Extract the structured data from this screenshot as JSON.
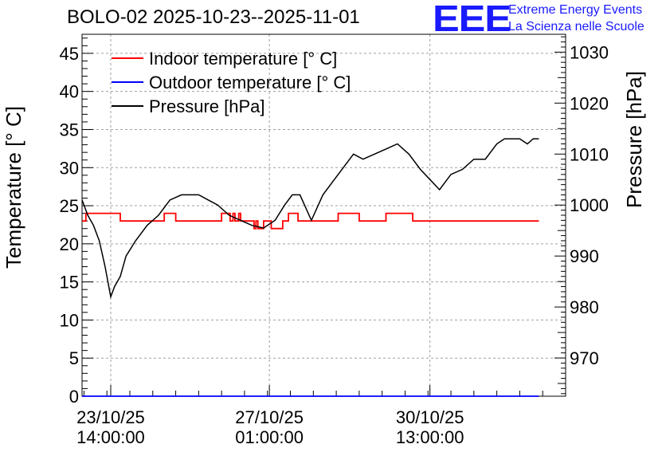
{
  "header": {
    "title": "BOLO-02 2025-10-23--2025-11-01",
    "logo_letters": "EEE",
    "logo_line1": "Extreme Energy Events",
    "logo_line2": "La Scienza nelle Scuole",
    "logo_color": "#1a1aff"
  },
  "chart_data": {
    "type": "line",
    "title": "BOLO-02 2025-10-23--2025-11-01",
    "ylabel": "Temperature [° C]",
    "y2label": "Pressure [hPa]",
    "ylim": [
      0,
      47.5
    ],
    "y2lim": [
      962.5,
      1033.5
    ],
    "y_ticks": [
      0,
      5,
      10,
      15,
      20,
      25,
      30,
      35,
      40,
      45
    ],
    "y2_ticks": [
      970,
      980,
      990,
      1000,
      1010,
      1020,
      1030
    ],
    "x_range": [
      "2025-10-22 23:00",
      "2025-11-02 12:00"
    ],
    "x_ticks": [
      {
        "date": "23/10/25",
        "time": "14:00:00",
        "t": "2025-10-23 14:00"
      },
      {
        "date": "27/10/25",
        "time": "01:00:00",
        "t": "2025-10-27 01:00"
      },
      {
        "date": "30/10/25",
        "time": "13:00:00",
        "t": "2025-10-30 13:00"
      }
    ],
    "grid": true,
    "legend_position": "top-left",
    "series": [
      {
        "name": "Indoor temperature [° C]",
        "axis": "left",
        "color": "#ff0000",
        "points": [
          [
            "2025-10-22 23:00",
            23
          ],
          [
            "2025-10-23 01:00",
            24
          ],
          [
            "2025-10-23 18:00",
            24
          ],
          [
            "2025-10-23 19:00",
            23
          ],
          [
            "2025-10-24 17:00",
            23
          ],
          [
            "2025-10-24 18:00",
            24
          ],
          [
            "2025-10-24 23:00",
            24
          ],
          [
            "2025-10-25 00:00",
            23
          ],
          [
            "2025-10-25 23:00",
            23
          ],
          [
            "2025-10-26 00:00",
            24
          ],
          [
            "2025-10-26 04:00",
            24
          ],
          [
            "2025-10-26 04:30",
            23
          ],
          [
            "2025-10-26 06:00",
            24
          ],
          [
            "2025-10-26 07:00",
            23
          ],
          [
            "2025-10-26 09:00",
            24
          ],
          [
            "2025-10-26 10:00",
            23
          ],
          [
            "2025-10-26 16:00",
            23
          ],
          [
            "2025-10-26 17:00",
            22
          ],
          [
            "2025-10-26 18:00",
            23
          ],
          [
            "2025-10-26 19:00",
            22
          ],
          [
            "2025-10-26 21:00",
            22
          ],
          [
            "2025-10-26 22:00",
            23
          ],
          [
            "2025-10-27 01:00",
            23
          ],
          [
            "2025-10-27 02:00",
            22
          ],
          [
            "2025-10-27 07:00",
            22
          ],
          [
            "2025-10-27 08:00",
            23
          ],
          [
            "2025-10-27 10:00",
            23
          ],
          [
            "2025-10-27 11:00",
            24
          ],
          [
            "2025-10-27 15:00",
            24
          ],
          [
            "2025-10-27 16:00",
            23
          ],
          [
            "2025-10-28 12:00",
            23
          ],
          [
            "2025-10-28 13:00",
            24
          ],
          [
            "2025-10-28 23:00",
            24
          ],
          [
            "2025-10-29 00:00",
            23
          ],
          [
            "2025-10-29 13:00",
            23
          ],
          [
            "2025-10-29 14:00",
            24
          ],
          [
            "2025-10-30 03:00",
            24
          ],
          [
            "2025-10-30 04:00",
            23
          ],
          [
            "2025-11-01 22:00",
            23
          ]
        ]
      },
      {
        "name": "Outdoor temperature [° C]",
        "axis": "left",
        "color": "#0000ff",
        "points": [
          [
            "2025-10-22 23:00",
            0
          ],
          [
            "2025-11-01 22:00",
            0
          ]
        ]
      },
      {
        "name": "Pressure [hPa]",
        "axis": "right",
        "color": "#000000",
        "points": [
          [
            "2025-10-22 23:00",
            1001
          ],
          [
            "2025-10-23 02:00",
            998
          ],
          [
            "2025-10-23 05:00",
            996
          ],
          [
            "2025-10-23 08:00",
            993
          ],
          [
            "2025-10-23 11:00",
            988
          ],
          [
            "2025-10-23 14:00",
            982
          ],
          [
            "2025-10-23 16:00",
            984
          ],
          [
            "2025-10-23 19:00",
            986
          ],
          [
            "2025-10-23 22:00",
            990
          ],
          [
            "2025-10-24 03:00",
            993
          ],
          [
            "2025-10-24 09:00",
            996
          ],
          [
            "2025-10-24 15:00",
            998
          ],
          [
            "2025-10-24 21:00",
            1001
          ],
          [
            "2025-10-25 03:00",
            1002
          ],
          [
            "2025-10-25 12:00",
            1002
          ],
          [
            "2025-10-25 17:00",
            1001
          ],
          [
            "2025-10-25 22:00",
            1000
          ],
          [
            "2025-10-26 04:00",
            998
          ],
          [
            "2025-10-26 10:00",
            997
          ],
          [
            "2025-10-26 16:00",
            996
          ],
          [
            "2025-10-26 22:00",
            995.5
          ],
          [
            "2025-10-27 04:00",
            997
          ],
          [
            "2025-10-27 09:00",
            1000
          ],
          [
            "2025-10-27 13:00",
            1002
          ],
          [
            "2025-10-27 17:00",
            1002
          ],
          [
            "2025-10-27 23:00",
            997
          ],
          [
            "2025-10-28 05:00",
            1002
          ],
          [
            "2025-10-28 11:00",
            1005
          ],
          [
            "2025-10-28 17:00",
            1008
          ],
          [
            "2025-10-28 21:00",
            1010
          ],
          [
            "2025-10-29 02:00",
            1009
          ],
          [
            "2025-10-29 08:00",
            1010
          ],
          [
            "2025-10-29 14:00",
            1011
          ],
          [
            "2025-10-29 20:00",
            1012
          ],
          [
            "2025-10-30 02:00",
            1010
          ],
          [
            "2025-10-30 08:00",
            1007
          ],
          [
            "2025-10-30 13:00",
            1005
          ],
          [
            "2025-10-30 18:00",
            1003
          ],
          [
            "2025-10-31 00:00",
            1006
          ],
          [
            "2025-10-31 06:00",
            1007
          ],
          [
            "2025-10-31 12:00",
            1009
          ],
          [
            "2025-10-31 18:00",
            1009
          ],
          [
            "2025-11-01 00:00",
            1012
          ],
          [
            "2025-11-01 04:00",
            1013
          ],
          [
            "2025-11-01 12:00",
            1013
          ],
          [
            "2025-11-01 16:00",
            1012
          ],
          [
            "2025-11-01 19:00",
            1013
          ],
          [
            "2025-11-01 22:00",
            1013
          ]
        ]
      }
    ]
  }
}
